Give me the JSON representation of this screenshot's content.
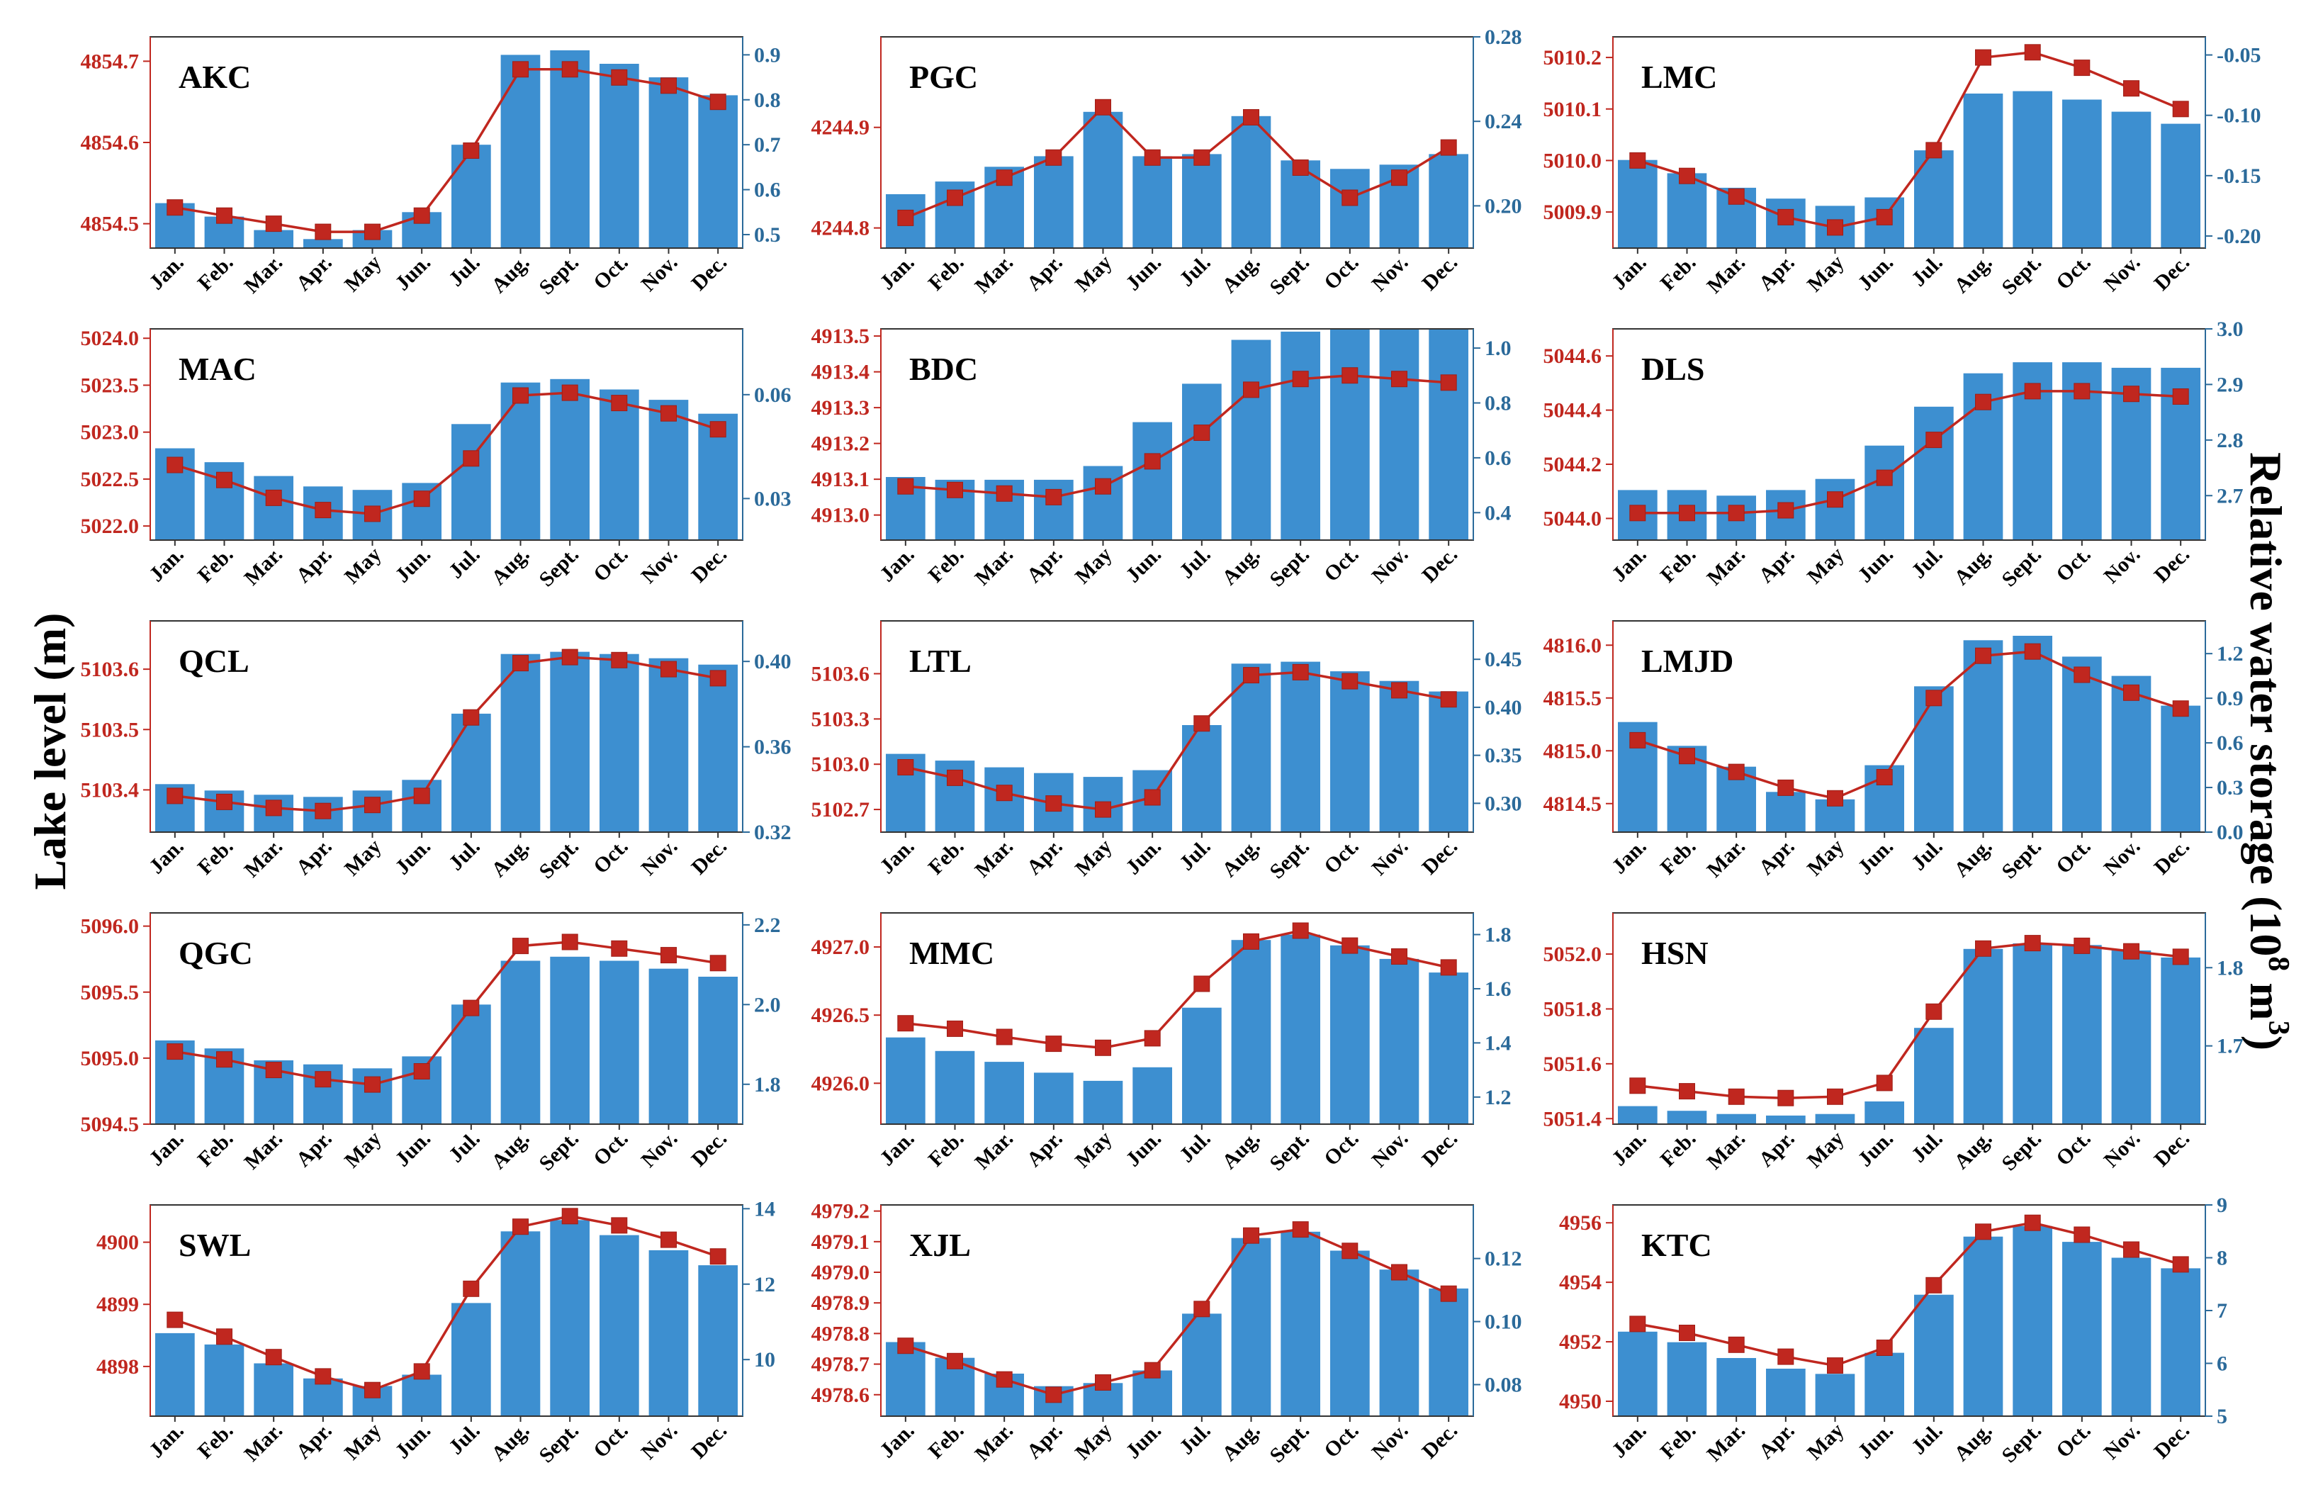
{
  "figure": {
    "ylabel_left": "Lake level (m)",
    "ylabel_right_prefix": "Relative water storage (10",
    "ylabel_right_sup1": "8",
    "ylabel_right_mid": " m",
    "ylabel_right_sup2": "3",
    "ylabel_right_suffix": ")"
  },
  "colors": {
    "bar": "#3d8fd0",
    "line": "#c0271f",
    "left_axis": "#c0271f",
    "right_axis": "#2b6a9a"
  },
  "months": [
    "Jan.",
    "Feb.",
    "Mar.",
    "Apr.",
    "May",
    "Jun.",
    "Jul.",
    "Aug.",
    "Sept.",
    "Oct.",
    "Nov.",
    "Dec."
  ],
  "chart_data": [
    {
      "type": "bar+line",
      "name": "AKC",
      "left_ticks": [
        "4854.5",
        "4854.6",
        "4854.7"
      ],
      "left_range": [
        4854.47,
        4854.73
      ],
      "right_ticks": [
        "0.5",
        "0.6",
        "0.7",
        "0.8",
        "0.9"
      ],
      "right_range": [
        0.47,
        0.94
      ],
      "storage": [
        0.57,
        0.54,
        0.51,
        0.49,
        0.51,
        0.55,
        0.7,
        0.9,
        0.91,
        0.88,
        0.85,
        0.81
      ],
      "level": [
        4854.52,
        4854.51,
        4854.5,
        4854.49,
        4854.49,
        4854.51,
        4854.59,
        4854.69,
        4854.69,
        4854.68,
        4854.67,
        4854.65
      ]
    },
    {
      "type": "bar+line",
      "name": "PGC",
      "left_ticks": [
        "4244.8",
        "4244.9"
      ],
      "left_range": [
        4244.78,
        4244.99
      ],
      "right_ticks": [
        "0.20",
        "0.24",
        "0.28"
      ],
      "right_range": [
        0.18,
        0.28
      ],
      "storage": [
        0.2055,
        0.2115,
        0.2185,
        0.2235,
        0.2445,
        0.2235,
        0.2245,
        0.2425,
        0.2215,
        0.2175,
        0.2195,
        0.2245
      ],
      "level": [
        4244.81,
        4244.83,
        4244.85,
        4244.87,
        4244.92,
        4244.87,
        4244.87,
        4244.91,
        4244.86,
        4244.83,
        4244.85,
        4244.88
      ]
    },
    {
      "type": "bar+line",
      "name": "LMC",
      "left_ticks": [
        "5009.9",
        "5010.0",
        "5010.1",
        "5010.2"
      ],
      "left_range": [
        5009.83,
        5010.24
      ],
      "right_ticks": [
        "-0.20",
        "-0.15",
        "-0.10",
        "-0.05"
      ],
      "right_range": [
        -0.21,
        -0.035
      ],
      "storage": [
        -0.137,
        -0.148,
        -0.16,
        -0.169,
        -0.175,
        -0.168,
        -0.129,
        -0.082,
        -0.08,
        -0.087,
        -0.097,
        -0.107
      ],
      "level": [
        5010.0,
        5009.97,
        5009.93,
        5009.89,
        5009.87,
        5009.89,
        5010.02,
        5010.2,
        5010.21,
        5010.18,
        5010.14,
        5010.1
      ]
    },
    {
      "type": "bar+line",
      "name": "MAC",
      "left_ticks": [
        "5022.0",
        "5022.5",
        "5023.0",
        "5023.5",
        "5024.0"
      ],
      "left_range": [
        5021.85,
        5024.1
      ],
      "right_ticks": [
        "0.03",
        "0.06"
      ],
      "right_range": [
        0.018,
        0.079
      ],
      "storage": [
        0.0445,
        0.0405,
        0.0365,
        0.0335,
        0.0325,
        0.0345,
        0.0515,
        0.0635,
        0.0645,
        0.0615,
        0.0585,
        0.0545
      ],
      "level": [
        5022.65,
        5022.49,
        5022.3,
        5022.17,
        5022.13,
        5022.29,
        5022.72,
        5023.39,
        5023.42,
        5023.31,
        5023.2,
        5023.03
      ]
    },
    {
      "type": "bar+line",
      "name": "BDC",
      "left_ticks": [
        "4913.0",
        "4913.1",
        "4913.2",
        "4913.3",
        "4913.4",
        "4913.5"
      ],
      "left_range": [
        4912.93,
        4913.52
      ],
      "right_ticks": [
        "0.4",
        "0.6",
        "0.8",
        "1.0"
      ],
      "right_range": [
        0.3,
        1.07
      ],
      "storage": [
        0.53,
        0.52,
        0.52,
        0.52,
        0.57,
        0.73,
        0.87,
        1.03,
        1.06,
        1.08,
        1.08,
        1.08
      ],
      "level": [
        4913.08,
        4913.07,
        4913.06,
        4913.05,
        4913.08,
        4913.15,
        4913.23,
        4913.35,
        4913.38,
        4913.39,
        4913.38,
        4913.37
      ]
    },
    {
      "type": "bar+line",
      "name": "DLS",
      "left_ticks": [
        "5044.0",
        "5044.2",
        "5044.4",
        "5044.6"
      ],
      "left_range": [
        5043.92,
        5044.7
      ],
      "right_ticks": [
        "2.7",
        "2.8",
        "2.9",
        "3.0"
      ],
      "right_range": [
        2.62,
        3.0
      ],
      "storage": [
        2.71,
        2.71,
        2.7,
        2.71,
        2.73,
        2.79,
        2.86,
        2.92,
        2.94,
        2.94,
        2.93,
        2.93
      ],
      "level": [
        5044.02,
        5044.02,
        5044.02,
        5044.03,
        5044.07,
        5044.15,
        5044.29,
        5044.43,
        5044.47,
        5044.47,
        5044.46,
        5044.45
      ]
    },
    {
      "type": "bar+line",
      "name": "QCL",
      "left_ticks": [
        "5103.4",
        "5103.5",
        "5103.6"
      ],
      "left_range": [
        5103.33,
        5103.68
      ],
      "right_ticks": [
        "0.32",
        "0.36",
        "0.40"
      ],
      "right_range": [
        0.32,
        0.419
      ],
      "storage": [
        0.3425,
        0.3395,
        0.3375,
        0.3365,
        0.3395,
        0.3445,
        0.3755,
        0.4035,
        0.4045,
        0.4035,
        0.4015,
        0.3985
      ],
      "level": [
        5103.39,
        5103.38,
        5103.37,
        5103.365,
        5103.375,
        5103.39,
        5103.52,
        5103.61,
        5103.62,
        5103.615,
        5103.6,
        5103.585
      ]
    },
    {
      "type": "bar+line",
      "name": "LTL",
      "left_ticks": [
        "5102.7",
        "5103.0",
        "5103.3",
        "5103.6"
      ],
      "left_range": [
        5102.55,
        5103.95
      ],
      "right_ticks": [
        "0.30",
        "0.35",
        "0.40",
        "0.45"
      ],
      "right_range": [
        0.27,
        0.49
      ],
      "storage": [
        0.3515,
        0.3445,
        0.3375,
        0.3315,
        0.3275,
        0.3345,
        0.3815,
        0.4455,
        0.4475,
        0.4375,
        0.4275,
        0.4165
      ],
      "level": [
        5102.98,
        5102.91,
        5102.81,
        5102.74,
        5102.7,
        5102.78,
        5103.27,
        5103.59,
        5103.61,
        5103.55,
        5103.49,
        5103.43
      ]
    },
    {
      "type": "bar+line",
      "name": "LMJD",
      "left_ticks": [
        "4814.5",
        "4815.0",
        "4815.5",
        "4816.0"
      ],
      "left_range": [
        4814.23,
        4816.23
      ],
      "right_ticks": [
        "0.0",
        "0.3",
        "0.6",
        "0.9",
        "1.2"
      ],
      "right_range": [
        0.0,
        1.42
      ],
      "storage": [
        0.74,
        0.58,
        0.44,
        0.27,
        0.22,
        0.45,
        0.98,
        1.29,
        1.32,
        1.18,
        1.05,
        0.85
      ],
      "level": [
        4815.1,
        4814.95,
        4814.8,
        4814.65,
        4814.55,
        4814.75,
        4815.5,
        4815.9,
        4815.94,
        4815.72,
        4815.55,
        4815.4
      ]
    },
    {
      "type": "bar+line",
      "name": "QGC",
      "left_ticks": [
        "5094.5",
        "5095.0",
        "5095.5",
        "5096.0"
      ],
      "left_range": [
        5094.5,
        5096.1
      ],
      "right_ticks": [
        "1.8",
        "2.0",
        "2.2"
      ],
      "right_range": [
        1.7,
        2.23
      ],
      "storage": [
        1.91,
        1.89,
        1.86,
        1.85,
        1.84,
        1.87,
        2.0,
        2.11,
        2.12,
        2.11,
        2.09,
        2.07
      ],
      "level": [
        5095.05,
        5094.99,
        5094.91,
        5094.84,
        5094.8,
        5094.9,
        5095.38,
        5095.85,
        5095.88,
        5095.83,
        5095.78,
        5095.72
      ]
    },
    {
      "type": "bar+line",
      "name": "MMC",
      "left_ticks": [
        "4926.0",
        "4926.5",
        "4927.0"
      ],
      "left_range": [
        4925.7,
        4927.25
      ],
      "right_ticks": [
        "1.2",
        "1.4",
        "1.6",
        "1.8"
      ],
      "right_range": [
        1.1,
        1.88
      ],
      "storage": [
        1.42,
        1.37,
        1.33,
        1.29,
        1.26,
        1.31,
        1.53,
        1.78,
        1.8,
        1.76,
        1.71,
        1.66
      ],
      "level": [
        4926.44,
        4926.4,
        4926.34,
        4926.29,
        4926.26,
        4926.33,
        4926.73,
        4927.04,
        4927.12,
        4927.01,
        4926.93,
        4926.85
      ]
    },
    {
      "type": "bar+line",
      "name": "HSN",
      "left_ticks": [
        "5051.4",
        "5051.6",
        "5051.8",
        "5052.0"
      ],
      "left_range": [
        5051.38,
        5052.15
      ],
      "right_ticks": [
        "1.7",
        "1.8"
      ],
      "right_range": [
        1.6,
        1.87
      ],
      "storage": [
        1.623,
        1.617,
        1.613,
        1.611,
        1.613,
        1.629,
        1.723,
        1.824,
        1.831,
        1.829,
        1.822,
        1.813
      ],
      "level": [
        5051.52,
        5051.5,
        5051.48,
        5051.475,
        5051.48,
        5051.53,
        5051.79,
        5052.02,
        5052.04,
        5052.03,
        5052.01,
        5051.99
      ]
    },
    {
      "type": "bar+line",
      "name": "SWL",
      "left_ticks": [
        "4898",
        "4899",
        "4900"
      ],
      "left_range": [
        4897.2,
        4900.6
      ],
      "right_ticks": [
        "10",
        "12",
        "14"
      ],
      "right_range": [
        8.5,
        14.1
      ],
      "storage": [
        10.7,
        10.4,
        9.9,
        9.5,
        9.3,
        9.6,
        11.5,
        13.4,
        13.7,
        13.3,
        12.9,
        12.5
      ],
      "level": [
        4898.75,
        4898.48,
        4898.15,
        4897.84,
        4897.62,
        4897.92,
        4899.25,
        4900.25,
        4900.42,
        4900.27,
        4900.04,
        4899.77
      ]
    },
    {
      "type": "bar+line",
      "name": "XJL",
      "left_ticks": [
        "4978.6",
        "4978.7",
        "4978.8",
        "4978.9",
        "4979.0",
        "4979.1",
        "4979.2"
      ],
      "left_range": [
        4978.53,
        4979.22
      ],
      "right_ticks": [
        "0.08",
        "0.10",
        "0.12"
      ],
      "right_range": [
        0.07,
        0.137
      ],
      "storage": [
        0.0935,
        0.0885,
        0.0835,
        0.0795,
        0.0805,
        0.0845,
        0.1025,
        0.1265,
        0.1285,
        0.1225,
        0.1165,
        0.1105
      ],
      "level": [
        4978.76,
        4978.71,
        4978.65,
        4978.6,
        4978.64,
        4978.68,
        4978.88,
        4979.12,
        4979.14,
        4979.07,
        4979.0,
        4978.93
      ]
    },
    {
      "type": "bar+line",
      "name": "KTC",
      "left_ticks": [
        "4950",
        "4952",
        "4954",
        "4956"
      ],
      "left_range": [
        4949.5,
        4956.6
      ],
      "right_ticks": [
        "5",
        "6",
        "7",
        "8",
        "9"
      ],
      "right_range": [
        5.0,
        9.0
      ],
      "storage": [
        6.6,
        6.4,
        6.1,
        5.9,
        5.8,
        6.2,
        7.3,
        8.4,
        8.6,
        8.3,
        8.0,
        7.8
      ],
      "level": [
        4952.6,
        4952.3,
        4951.9,
        4951.5,
        4951.2,
        4951.8,
        4953.9,
        4955.7,
        4956.0,
        4955.6,
        4955.1,
        4954.6
      ]
    }
  ]
}
